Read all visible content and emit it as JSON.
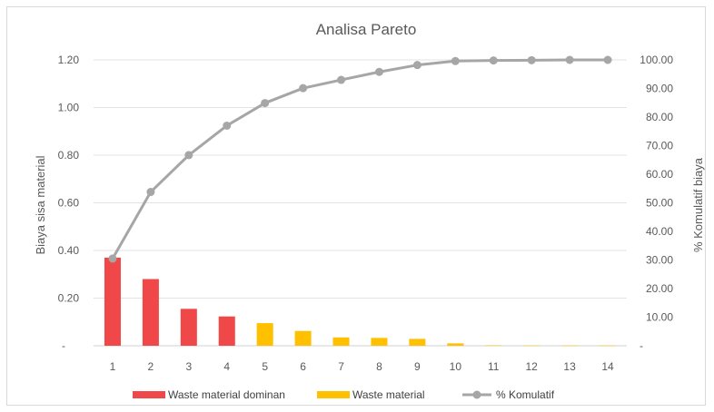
{
  "chart_data": {
    "type": "bar",
    "title": "Analisa Pareto",
    "xlabel": "",
    "ylabel": "Biaya sisa material",
    "y2label": "% Komulatif biaya",
    "categories": [
      "1",
      "2",
      "3",
      "4",
      "5",
      "6",
      "7",
      "8",
      "9",
      "10",
      "11",
      "12",
      "13",
      "14"
    ],
    "ylim": [
      0,
      1.2
    ],
    "y2lim": [
      0,
      100
    ],
    "yticks": [
      "-",
      "0.20",
      "0.40",
      "0.60",
      "0.80",
      "1.00",
      "1.20"
    ],
    "y2ticks": [
      "-",
      "10.00",
      "20.00",
      "30.00",
      "40.00",
      "50.00",
      "60.00",
      "70.00",
      "80.00",
      "90.00",
      "100.00"
    ],
    "series": [
      {
        "name": "Waste material dominan",
        "kind": "bar",
        "axis": "left",
        "color": "#f04848",
        "values": [
          0.37,
          0.28,
          0.155,
          0.123,
          null,
          null,
          null,
          null,
          null,
          null,
          null,
          null,
          null,
          null
        ]
      },
      {
        "name": "Waste material",
        "kind": "bar",
        "axis": "left",
        "color": "#ffc000",
        "values": [
          null,
          null,
          null,
          null,
          0.095,
          0.062,
          0.035,
          0.033,
          0.029,
          0.01,
          0.002,
          0.001,
          0.001,
          0.001
        ]
      },
      {
        "name": "% Komulatif",
        "kind": "line",
        "axis": "right",
        "color": "#a6a6a6",
        "values": [
          30.5,
          53.8,
          66.7,
          77.0,
          84.9,
          90.1,
          93.0,
          95.8,
          98.2,
          99.6,
          99.8,
          99.9,
          100.0,
          100.0
        ]
      }
    ],
    "grid": true,
    "legend_position": "bottom"
  }
}
